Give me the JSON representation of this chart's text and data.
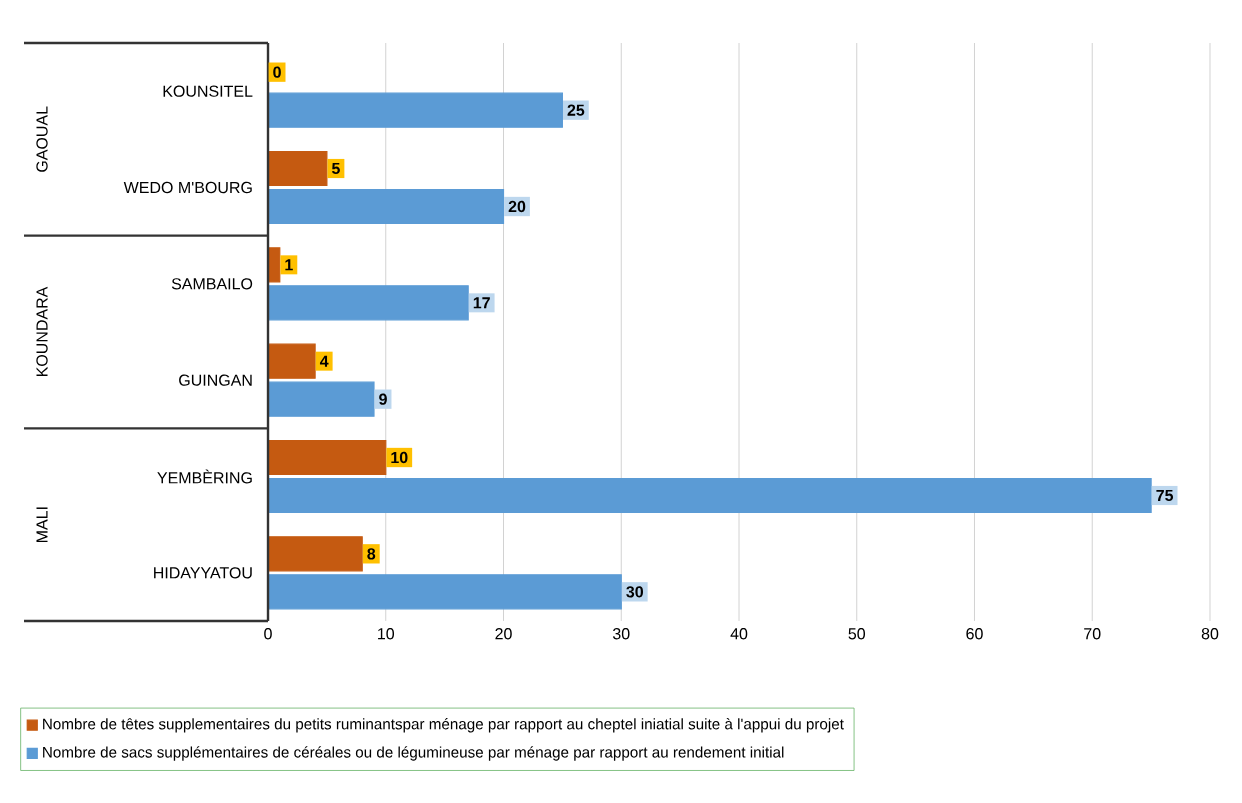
{
  "chart_data": {
    "type": "bar",
    "orientation": "horizontal",
    "categories": [
      "KOUNSITEL",
      "WEDO M'BOURG",
      "SAMBAILO",
      "GUINGAN",
      "YEMBÈRING",
      "HIDAYYATOU"
    ],
    "series": [
      {
        "name": "Nombre de têtes supplementaires du petits ruminantspar ménage par rapport au  cheptel iniatial suite à l'appui du projet",
        "color": "#c55a11",
        "values": [
          0,
          5,
          1,
          4,
          10,
          8
        ]
      },
      {
        "name": "Nombre de sacs supplémentaires de céréales ou de légumineuse par ménage par rapport au rendement initial",
        "color": "#5b9bd5",
        "values": [
          25,
          20,
          17,
          9,
          75,
          30
        ]
      }
    ],
    "annotations": [
      "GAOUAL",
      "KOUNDARA",
      "MALI"
    ],
    "xlim": [
      0,
      80
    ],
    "xticks": [
      0,
      10,
      20,
      30,
      40,
      50,
      60,
      70,
      80
    ],
    "grid": "x",
    "legend": "bottom",
    "data_labels": true
  }
}
